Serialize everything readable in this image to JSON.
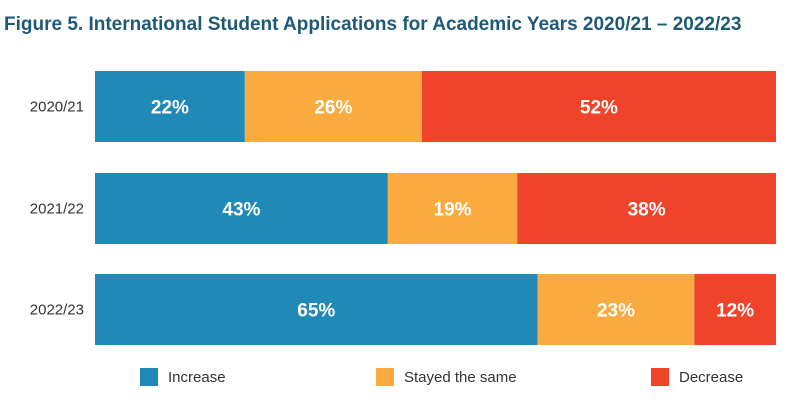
{
  "chart_data": {
    "type": "bar",
    "orientation": "horizontal",
    "stacked": true,
    "title": "Figure 5. International Student Applications for Academic Years 2020/21 – 2022/23",
    "categories": [
      "2020/21",
      "2021/22",
      "2022/23"
    ],
    "series": [
      {
        "name": "Increase",
        "color": "#2189b8",
        "values": [
          22,
          43,
          65
        ]
      },
      {
        "name": "Stayed the same",
        "color": "#f9ab3f",
        "values": [
          26,
          19,
          23
        ]
      },
      {
        "name": "Decrease",
        "color": "#ef4429",
        "values": [
          52,
          38,
          12
        ]
      }
    ],
    "value_suffix": "%",
    "xlim": [
      0,
      100
    ],
    "xlabel": "",
    "ylabel": "",
    "grid": false,
    "legend_position": "bottom"
  }
}
